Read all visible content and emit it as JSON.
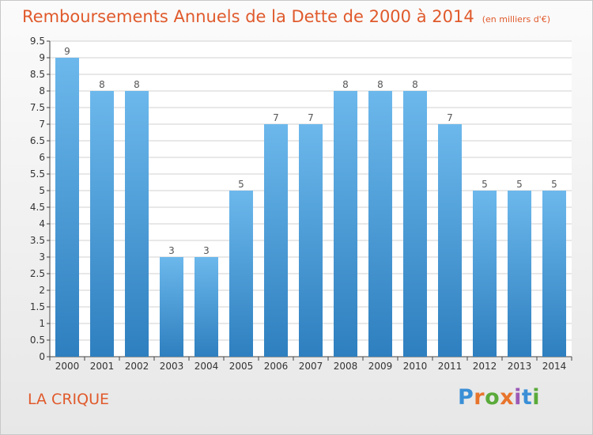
{
  "title": "Remboursements Annuels de la Dette de 2000 à 2014",
  "unit_note": "(en milliers d'€)",
  "place_name": "LA CRIQUE",
  "brand": {
    "text": "Proxiti",
    "letter_colors": [
      "#3a8fd6",
      "#e8742c",
      "#5aaa3a",
      "#e8742c",
      "#9b59b6",
      "#3a8fd6",
      "#5aaa3a"
    ]
  },
  "colors": {
    "title": "#e05a2c",
    "bar_top": "#6cb8ec",
    "bar_bottom": "#2e7fbf",
    "grid": "#d0d0d0",
    "axis": "#444444"
  },
  "chart_data": {
    "type": "bar",
    "categories": [
      "2000",
      "2001",
      "2002",
      "2003",
      "2004",
      "2005",
      "2006",
      "2007",
      "2008",
      "2009",
      "2010",
      "2011",
      "2012",
      "2013",
      "2014"
    ],
    "values": [
      9,
      8,
      8,
      3,
      3,
      5,
      7,
      7,
      8,
      8,
      8,
      7,
      5,
      5,
      5
    ],
    "ylim": [
      0,
      9.5
    ],
    "yticks": [
      "0",
      "0.5",
      "1",
      "1.5",
      "2",
      "2.5",
      "3",
      "3.5",
      "4",
      "4.5",
      "5",
      "5.5",
      "6",
      "6.5",
      "7",
      "7.5",
      "8",
      "8.5",
      "9",
      "9.5"
    ],
    "data_labels": [
      "9",
      "8",
      "8",
      "3",
      "3",
      "5",
      "7",
      "7",
      "8",
      "8",
      "8",
      "7",
      "5",
      "5",
      "5"
    ],
    "grid": true,
    "legend": "none"
  }
}
